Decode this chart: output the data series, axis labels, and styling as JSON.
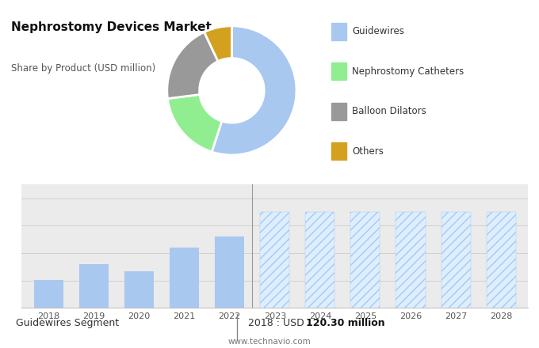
{
  "title": "Nephrostomy Devices Market",
  "subtitle": "Share by Product (USD million)",
  "pie_labels": [
    "Guidewires",
    "Nephrostomy Catheters",
    "Balloon Dilators",
    "Others"
  ],
  "pie_values": [
    55,
    18,
    20,
    7
  ],
  "pie_colors": [
    "#a8c8f0",
    "#90ee90",
    "#999999",
    "#d4a020"
  ],
  "bar_years_solid": [
    2018,
    2019,
    2020,
    2021,
    2022
  ],
  "bar_values_solid": [
    120.3,
    126.0,
    123.5,
    132.0,
    136.0
  ],
  "bar_years_hatched": [
    2023,
    2024,
    2025,
    2026,
    2027,
    2028
  ],
  "bar_values_hatched": [
    145.0,
    145.0,
    145.0,
    145.0,
    145.0,
    145.0
  ],
  "bar_color_solid": "#a8c8f0",
  "top_bg_color": "#e6e6e6",
  "bottom_bg_color": "#ebebeb",
  "footer_label": "Guidewires Segment",
  "footer_value": "2018 : USD ",
  "footer_bold": "120.30 million",
  "footer_url": "www.technavio.com",
  "hatch_pattern": "///",
  "ylim": [
    110,
    155
  ],
  "grid_color": "#d0d0d0",
  "white_bg": "#ffffff"
}
